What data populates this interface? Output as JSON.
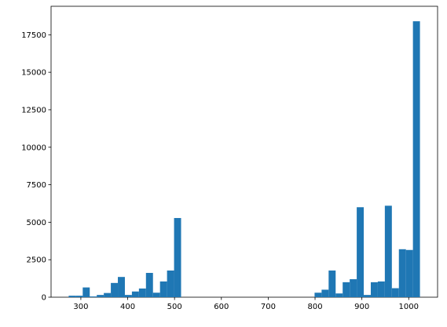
{
  "chart_data": {
    "type": "histogram",
    "color": "#1f77b4",
    "bins": [
      274,
      289,
      304,
      319,
      334,
      349,
      364,
      379,
      394,
      409,
      424,
      439,
      454,
      469,
      484,
      499,
      514,
      529,
      544,
      559,
      574,
      589,
      604,
      619,
      634,
      649,
      664,
      679,
      694,
      709,
      724,
      739,
      754,
      769,
      784,
      799,
      814,
      829,
      844,
      859,
      874,
      889,
      904,
      919,
      934,
      949,
      964,
      979,
      994,
      1009,
      1024
    ],
    "values": [
      100,
      100,
      650,
      50,
      150,
      280,
      950,
      1350,
      150,
      380,
      580,
      1620,
      300,
      1050,
      1780,
      5280,
      0,
      0,
      0,
      0,
      0,
      0,
      0,
      0,
      0,
      0,
      0,
      0,
      0,
      0,
      0,
      0,
      0,
      0,
      0,
      300,
      500,
      1780,
      250,
      1000,
      1200,
      6000,
      150,
      1000,
      1050,
      6100,
      600,
      3200,
      3150,
      18400
    ],
    "xlim": [
      236.4,
      1061.6
    ],
    "ylim": [
      0,
      19400
    ],
    "xticks": [
      300,
      400,
      500,
      600,
      700,
      800,
      900,
      1000
    ],
    "yticks": [
      0,
      2500,
      5000,
      7500,
      10000,
      12500,
      15000,
      17500
    ]
  }
}
